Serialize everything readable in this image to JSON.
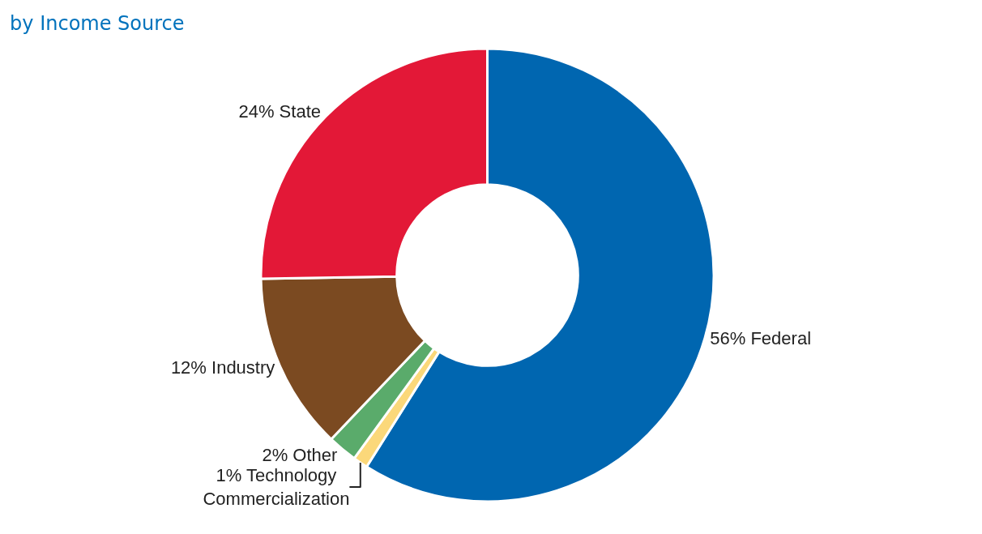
{
  "chart_data": {
    "type": "donut",
    "title": "by Income Source",
    "categories": [
      "Federal",
      "Technology Commercialization",
      "Other",
      "Industry",
      "State"
    ],
    "values": [
      56,
      1,
      2,
      12,
      24
    ],
    "value_labels": [
      "56%",
      "1%",
      "2%",
      "12%",
      "24%"
    ],
    "colors": [
      "#0066b0",
      "#fbd87a",
      "#5aab6b",
      "#7b4a21",
      "#e31837"
    ],
    "legend": false
  }
}
